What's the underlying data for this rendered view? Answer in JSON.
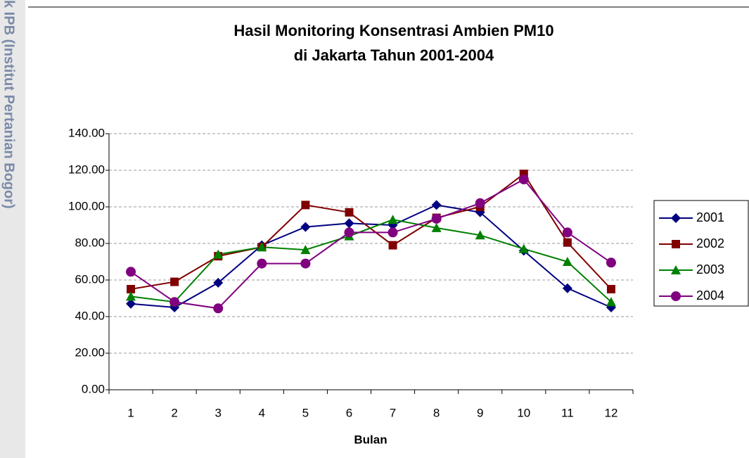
{
  "chart_data": {
    "type": "line",
    "title": "Hasil Monitoring Konsentrasi Ambien PM10",
    "subtitle": "di Jakarta Tahun 2001-2004",
    "watermark": "k IPB (Institut Pertanian Bogor)",
    "x_label": "Bulan",
    "categories": [
      "1",
      "2",
      "3",
      "4",
      "5",
      "6",
      "7",
      "8",
      "9",
      "10",
      "11",
      "12"
    ],
    "series": [
      {
        "name": "2001",
        "color": "#000080",
        "marker": "diamond",
        "values": [
          47,
          45,
          58.5,
          79,
          89,
          91,
          90,
          101,
          97,
          76,
          55.5,
          45
        ]
      },
      {
        "name": "2002",
        "color": "#800000",
        "marker": "square",
        "values": [
          55,
          59,
          73,
          78,
          101,
          97,
          79,
          94,
          100,
          118,
          80.5,
          55
        ]
      },
      {
        "name": "2003",
        "color": "#008000",
        "marker": "triangle",
        "values": [
          51,
          48,
          74,
          78,
          76.5,
          84,
          93,
          88.5,
          84.5,
          77,
          70,
          48
        ]
      },
      {
        "name": "2004",
        "color": "#800080",
        "marker": "circle",
        "values": [
          64.5,
          48,
          44.5,
          69,
          69,
          86,
          86,
          93.5,
          102,
          115,
          86,
          69.5
        ]
      }
    ],
    "ylim": [
      0,
      140
    ],
    "yticks": [
      {
        "value": 0,
        "label": "0.00"
      },
      {
        "value": 20,
        "label": "20.00"
      },
      {
        "value": 40,
        "label": "40.00"
      },
      {
        "value": 60,
        "label": "60.00"
      },
      {
        "value": 80,
        "label": "80.00"
      },
      {
        "value": 100,
        "label": "100.00"
      },
      {
        "value": 120,
        "label": "120.00"
      },
      {
        "value": 140,
        "label": "140.00"
      }
    ],
    "grid": true,
    "legend": "right"
  }
}
